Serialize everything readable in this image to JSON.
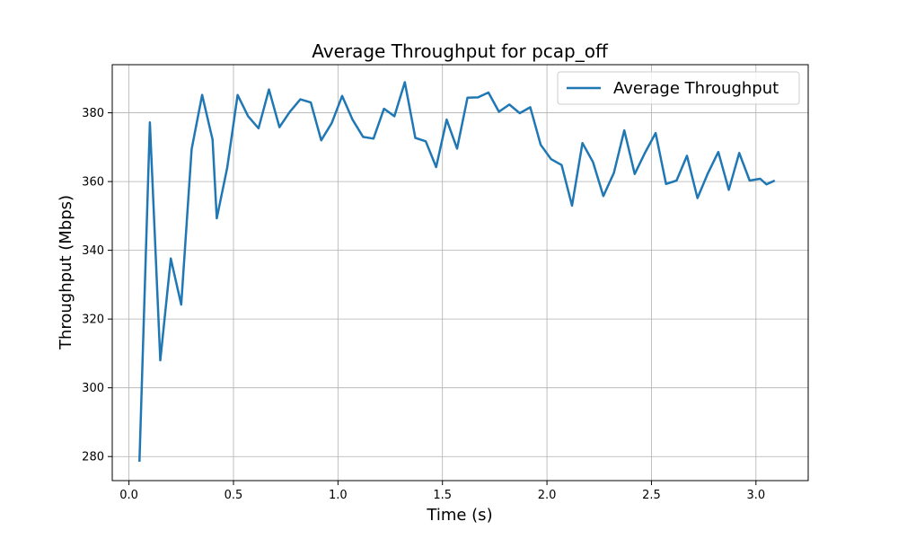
{
  "chart_data": {
    "type": "line",
    "title": "Average Throughput for pcap_off",
    "xlabel": "Time (s)",
    "ylabel": "Throughput (Mbps)",
    "xlim": [
      -0.08,
      3.25
    ],
    "ylim": [
      273,
      394
    ],
    "xticks": [
      "0.0",
      "0.5",
      "1.0",
      "1.5",
      "2.0",
      "2.5",
      "3.0"
    ],
    "yticks": [
      "280",
      "300",
      "320",
      "340",
      "360",
      "380"
    ],
    "grid": true,
    "legend_position": "top-right",
    "color": "#1f77b4",
    "series": [
      {
        "name": "Average Throughput",
        "x": [
          0.05,
          0.1,
          0.15,
          0.2,
          0.25,
          0.3,
          0.35,
          0.4,
          0.42,
          0.47,
          0.52,
          0.57,
          0.62,
          0.67,
          0.72,
          0.77,
          0.82,
          0.87,
          0.92,
          0.97,
          1.02,
          1.07,
          1.12,
          1.17,
          1.22,
          1.27,
          1.32,
          1.37,
          1.42,
          1.47,
          1.52,
          1.57,
          1.62,
          1.67,
          1.72,
          1.77,
          1.82,
          1.87,
          1.92,
          1.97,
          2.02,
          2.07,
          2.12,
          2.17,
          2.22,
          2.27,
          2.32,
          2.37,
          2.42,
          2.47,
          2.52,
          2.57,
          2.62,
          2.67,
          2.72,
          2.77,
          2.82,
          2.87,
          2.92,
          2.97,
          3.02,
          3.05,
          3.09
        ],
        "y": [
          278.5,
          377.2,
          308.0,
          337.6,
          324.2,
          369.4,
          385.2,
          372.2,
          349.3,
          364.0,
          385.2,
          379.0,
          375.5,
          386.8,
          375.8,
          380.3,
          383.9,
          383.0,
          372.0,
          377.0,
          384.9,
          378.0,
          373.0,
          372.5,
          381.2,
          379.0,
          388.9,
          372.7,
          371.7,
          364.2,
          378.0,
          369.6,
          384.4,
          384.5,
          385.9,
          380.3,
          382.4,
          379.9,
          381.6,
          370.7,
          366.5,
          364.8,
          353.0,
          371.2,
          365.7,
          355.8,
          362.5,
          374.9,
          362.2,
          368.5,
          374.1,
          359.3,
          360.3,
          367.5,
          355.2,
          362.4,
          368.6,
          357.6,
          368.3,
          360.3,
          360.8,
          359.2,
          360.3
        ]
      }
    ]
  }
}
